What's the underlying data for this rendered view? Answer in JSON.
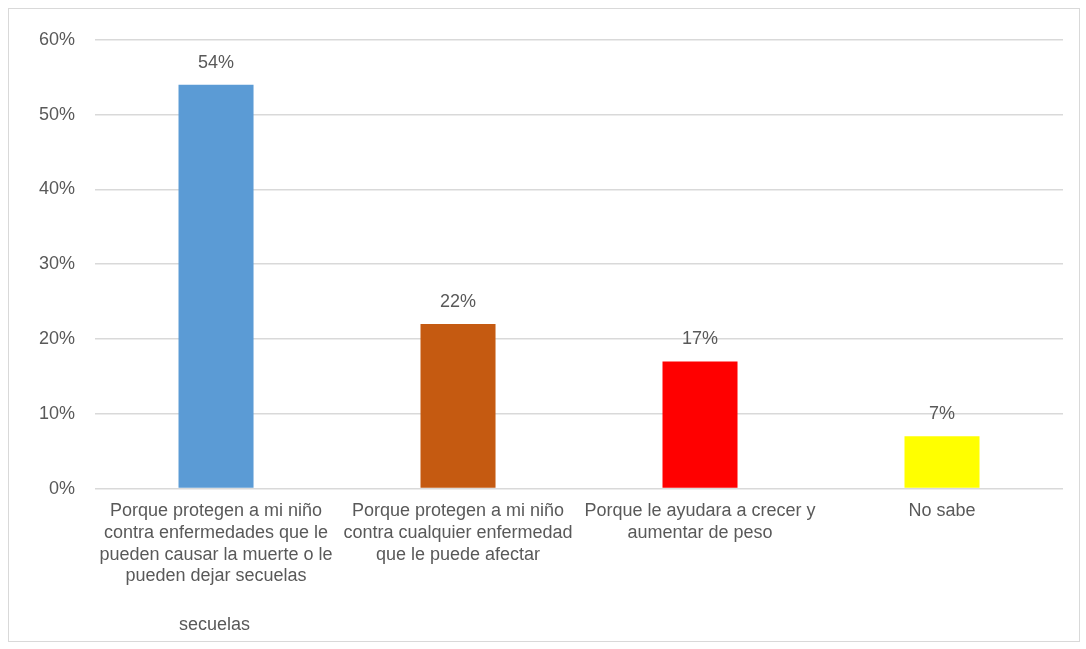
{
  "chart_data": {
    "type": "bar",
    "categories": [
      "Porque protegen a mi niño contra enfermedades que le pueden causar la muerte o le pueden dejar secuelas",
      "Porque protegen a mi niño contra cualquier enfermedad que le puede afectar",
      "Porque le ayudara a crecer y aumentar de peso",
      "No sabe"
    ],
    "values": [
      54,
      22,
      17,
      7
    ],
    "colors": [
      "#5b9bd5",
      "#c55a11",
      "#ff0000",
      "#ffff00"
    ],
    "value_labels": [
      "54%",
      "22%",
      "17%",
      "7%"
    ],
    "ylim": [
      0,
      60
    ],
    "yticks": [
      {
        "value": 0,
        "label": "0%"
      },
      {
        "value": 10,
        "label": "10%"
      },
      {
        "value": 20,
        "label": "20%"
      },
      {
        "value": 30,
        "label": "30%"
      },
      {
        "value": 40,
        "label": "40%"
      },
      {
        "value": 50,
        "label": "50%"
      },
      {
        "value": 60,
        "label": "60%"
      }
    ],
    "grid": "y",
    "legend": false,
    "annotations": [
      "secuelas"
    ]
  }
}
